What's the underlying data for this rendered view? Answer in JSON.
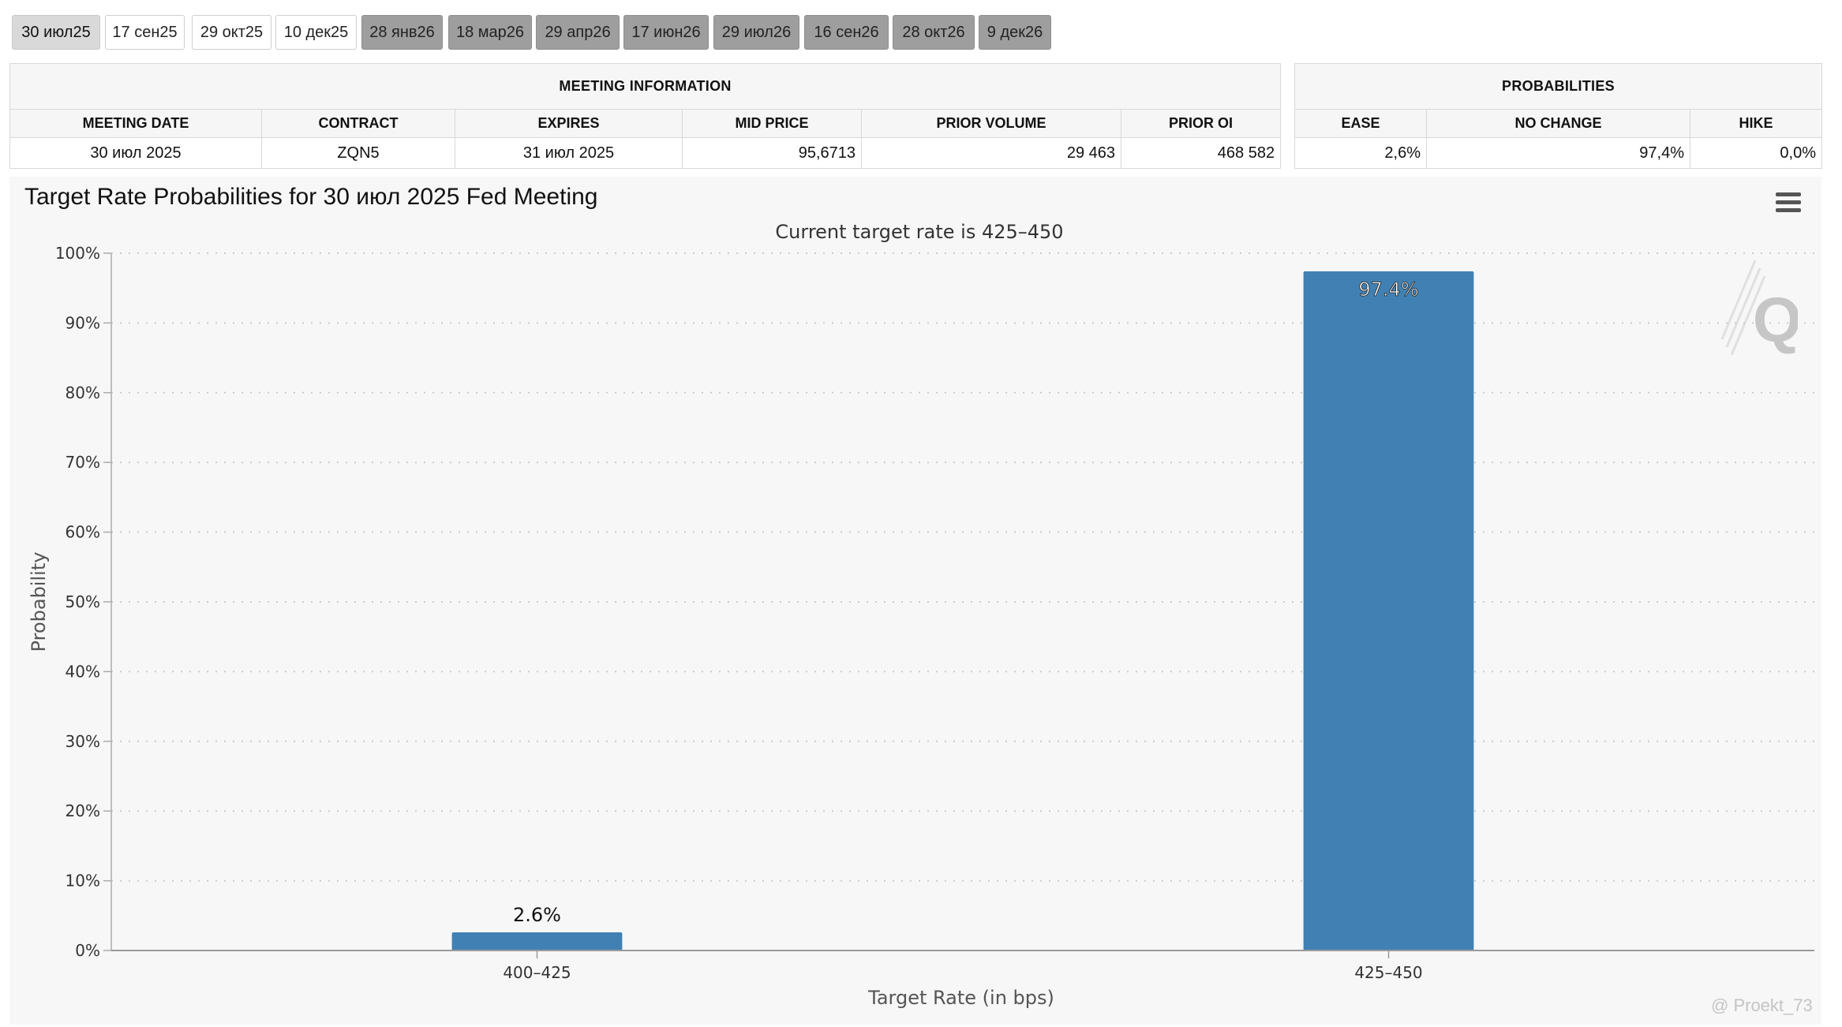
{
  "tabs": [
    {
      "label": "30 июл25",
      "state": "selected"
    },
    {
      "label": "17 сен25",
      "state": "near"
    },
    {
      "label": "29 окт25",
      "state": "near"
    },
    {
      "label": "10 дек25",
      "state": "near"
    },
    {
      "label": "28 янв26",
      "state": "far"
    },
    {
      "label": "18 мар26",
      "state": "far"
    },
    {
      "label": "29 апр26",
      "state": "far"
    },
    {
      "label": "17 июн26",
      "state": "far"
    },
    {
      "label": "29 июл26",
      "state": "far"
    },
    {
      "label": "16 сен26",
      "state": "far"
    },
    {
      "label": "28 окт26",
      "state": "far"
    },
    {
      "label": "9 дек26",
      "state": "far"
    }
  ],
  "meeting_info": {
    "heading": "MEETING INFORMATION",
    "columns": [
      "MEETING DATE",
      "CONTRACT",
      "EXPIRES",
      "MID PRICE",
      "PRIOR VOLUME",
      "PRIOR OI"
    ],
    "row": [
      "30 июл 2025",
      "ZQN5",
      "31 июл 2025",
      "95,6713",
      "29 463",
      "468 582"
    ]
  },
  "probabilities": {
    "heading": "PROBABILITIES",
    "columns": [
      "EASE",
      "NO CHANGE",
      "HIKE"
    ],
    "row": [
      "2,6%",
      "97,4%",
      "0,0%"
    ]
  },
  "chart": {
    "title": "Target Rate Probabilities for 30 июл 2025 Fed Meeting",
    "menu_icon": "hamburger-menu-icon",
    "logo_icon": "q-logo-watermark-icon",
    "footer_watermark": "@ Proekt_73"
  },
  "chart_data": {
    "type": "bar",
    "title": "Target Rate Probabilities for 30 июл 2025 Fed Meeting",
    "subtitle": "Current target rate is 425–450",
    "xlabel": "Target Rate (in bps)",
    "ylabel": "Probability",
    "categories": [
      "400–425",
      "425–450"
    ],
    "values": [
      2.6,
      97.4
    ],
    "data_labels": [
      "2.6%",
      "97.4%"
    ],
    "ylim": [
      0,
      100
    ],
    "yticks": [
      0,
      10,
      20,
      30,
      40,
      50,
      60,
      70,
      80,
      90,
      100
    ],
    "ytick_labels": [
      "0%",
      "10%",
      "20%",
      "30%",
      "40%",
      "50%",
      "60%",
      "70%",
      "80%",
      "90%",
      "100%"
    ],
    "grid": true,
    "legend": "none",
    "bar_color": "#4180b2"
  }
}
